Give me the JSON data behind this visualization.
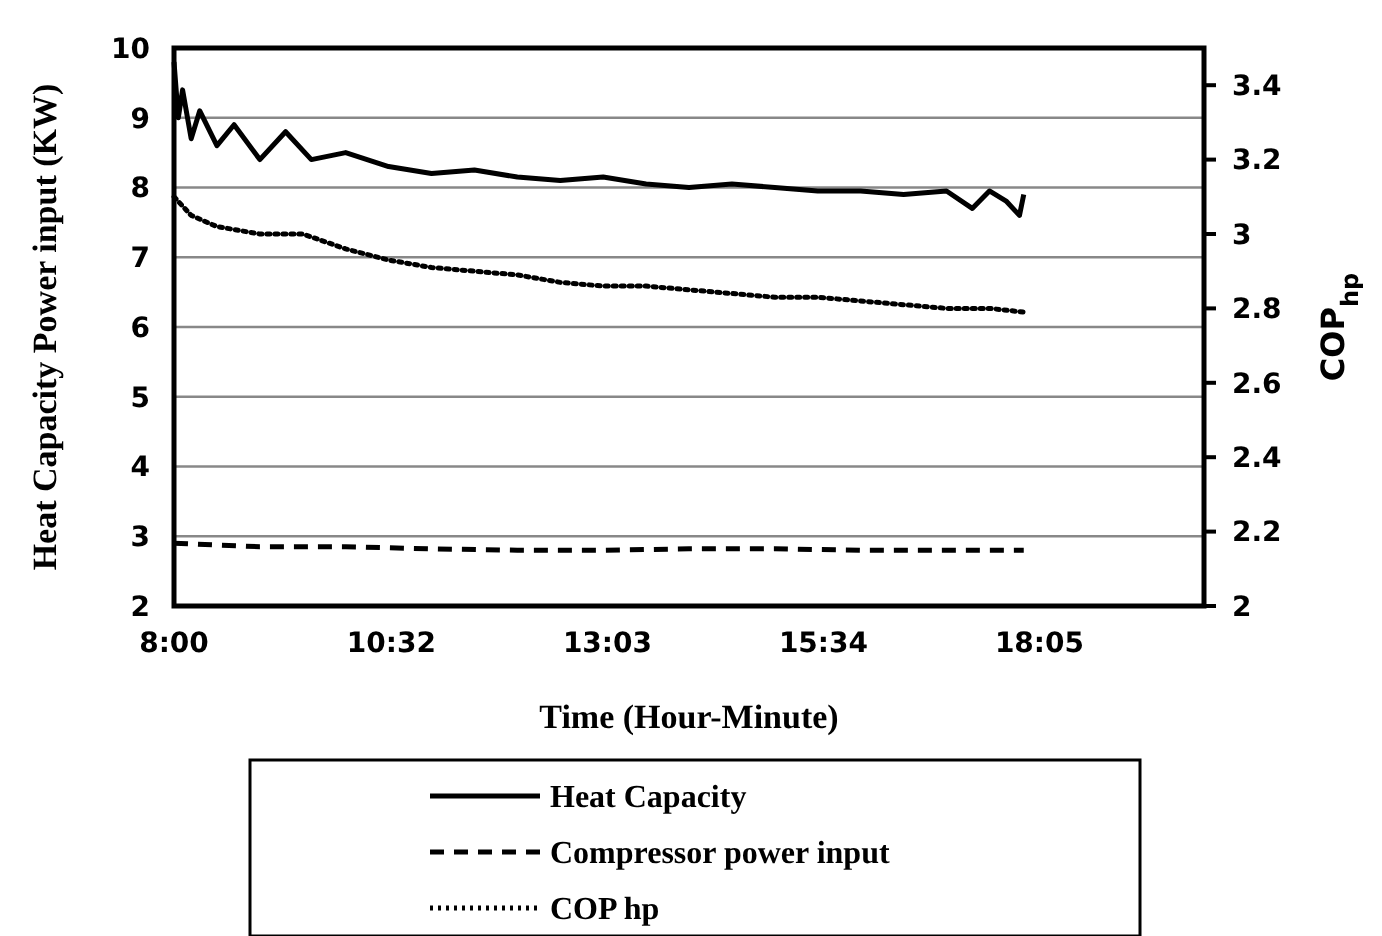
{
  "chart_data": {
    "type": "line",
    "xlabel": "Time (Hour-Minute)",
    "ylabel": "Heat Capacity Power input (KW)",
    "y2label": "COP$_{hp}$",
    "xlim": [
      8,
      20
    ],
    "xticks": [
      {
        "value": 8,
        "label": "8:00"
      },
      {
        "value": 10.5333,
        "label": "10:32"
      },
      {
        "value": 13.05,
        "label": "13:03"
      },
      {
        "value": 15.5667,
        "label": "15:34"
      },
      {
        "value": 18.0833,
        "label": "18:05"
      }
    ],
    "ylim": [
      2,
      10
    ],
    "yticks": [
      2,
      3,
      4,
      5,
      6,
      7,
      8,
      9,
      10
    ],
    "y2lim": [
      2,
      3.5
    ],
    "y2ticks": [
      2,
      2.2,
      2.4,
      2.6,
      2.8,
      3,
      3.2,
      3.4
    ],
    "grid": "y",
    "legend": "bottom",
    "series": [
      {
        "name": "Heat Capacity",
        "color": "#000000",
        "line_style": "solid",
        "x": [
          8,
          8.05,
          8.1,
          8.2,
          8.3,
          8.5,
          8.7,
          9,
          9.3,
          9.6,
          10,
          10.5,
          11,
          11.5,
          12,
          12.5,
          13,
          13.5,
          14,
          14.5,
          15,
          15.5,
          16,
          16.5,
          17,
          17.3,
          17.5,
          17.7,
          17.85,
          17.9
        ],
        "values": [
          9.8,
          9,
          9.4,
          8.7,
          9.1,
          8.6,
          8.9,
          8.4,
          8.8,
          8.4,
          8.5,
          8.3,
          8.2,
          8.25,
          8.15,
          8.1,
          8.15,
          8.05,
          8,
          8.05,
          8,
          7.95,
          7.95,
          7.9,
          7.95,
          7.7,
          7.95,
          7.8,
          7.6,
          7.9
        ]
      },
      {
        "name": "Compressor power input",
        "color": "#000000",
        "line_style": "dashed",
        "x": [
          8,
          9,
          10,
          11,
          12,
          13,
          14,
          15,
          16,
          17,
          17.9
        ],
        "values": [
          2.9,
          2.85,
          2.85,
          2.82,
          2.8,
          2.8,
          2.82,
          2.82,
          2.8,
          2.8,
          2.8
        ]
      },
      {
        "name": "COP hp",
        "color": "#000000",
        "line_style": "dotted",
        "axis": "y2",
        "x": [
          8,
          8.2,
          8.5,
          9,
          9.5,
          10,
          10.5,
          11,
          11.5,
          12,
          12.5,
          13,
          13.5,
          14,
          14.5,
          15,
          15.5,
          16,
          16.5,
          17,
          17.5,
          17.9
        ],
        "values": [
          3.1,
          3.05,
          3.02,
          3,
          3,
          2.96,
          2.93,
          2.91,
          2.9,
          2.89,
          2.87,
          2.86,
          2.86,
          2.85,
          2.84,
          2.83,
          2.83,
          2.82,
          2.81,
          2.8,
          2.8,
          2.79
        ]
      }
    ]
  }
}
